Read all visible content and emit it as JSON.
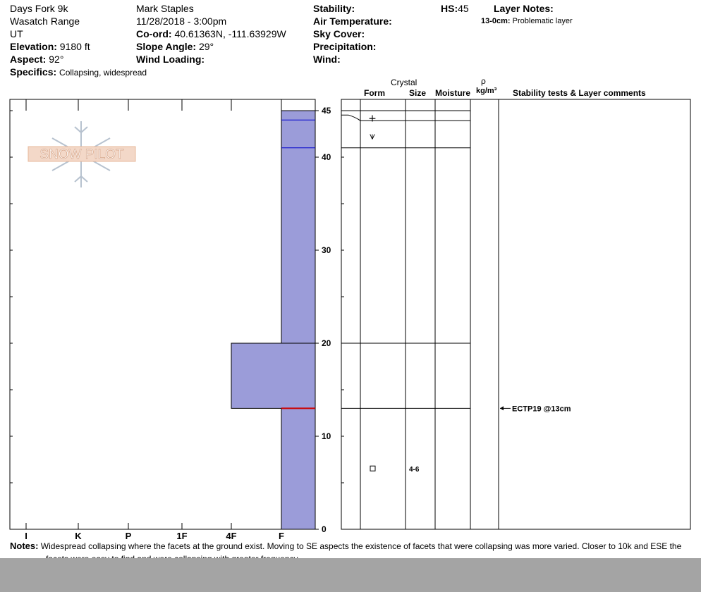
{
  "header": {
    "location": "Days Fork 9k",
    "range": "Wasatch Range",
    "state": "UT",
    "elevation_label": "Elevation:",
    "elevation_value": "9180 ft",
    "aspect_label": "Aspect:",
    "aspect_value": "92°",
    "specifics_label": "Specifics:",
    "specifics_value": "Collapsing, widespread",
    "observer": "Mark Staples",
    "datetime": "11/28/2018 - 3:00pm",
    "coord_label": "Co-ord:",
    "coord_value": "40.61363N, -111.63929W",
    "slope_label": "Slope Angle:",
    "slope_value": "29°",
    "wind_loading_label": "Wind Loading:",
    "stability_label": "Stability:",
    "air_temp_label": "Air Temperature:",
    "sky_cover_label": "Sky Cover:",
    "precip_label": "Precipitation:",
    "wind_label": "Wind:",
    "hs_label": "HS:",
    "hs_value": "45",
    "layer_notes_label": "Layer Notes:",
    "layer_note_range": "13-0cm:",
    "layer_note_text": "Problematic layer"
  },
  "watermark": {
    "text": "SNOW PILOT"
  },
  "table_headers": {
    "crystal": "Crystal",
    "form": "Form",
    "size": "Size",
    "moisture": "Moisture",
    "rho": "ρ",
    "density_unit": "kg/m³",
    "stability": "Stability tests & Layer comments"
  },
  "notes": {
    "label": "Notes:",
    "line1": "Widespread collapsing where the facets at the ground exist. Moving to SE aspects the existence of facets that were collapsing was more varied. Closer to 10k and ESE the",
    "line2": "facets were easy to find and were collapsing with greater frequency."
  },
  "chart_data": {
    "type": "bar",
    "orientation": "horizontal",
    "ylabel": "",
    "ylim": [
      0,
      45
    ],
    "yticks": [
      "0",
      "10",
      "20",
      "30",
      "40",
      "45"
    ],
    "hardness_scale": [
      "I",
      "K",
      "P",
      "1F",
      "4F",
      "F"
    ],
    "hardness_layers": [
      {
        "top": 45,
        "bottom": 20,
        "hardness": "F"
      },
      {
        "top": 20,
        "bottom": 13,
        "hardness": "4F"
      },
      {
        "top": 13,
        "bottom": 0,
        "hardness": "F"
      }
    ],
    "layer_boundaries": [
      45,
      44,
      41,
      20,
      13
    ],
    "crystals": [
      {
        "depth": 44.2,
        "symbol": "+",
        "size": ""
      },
      {
        "depth": 42.3,
        "symbol": "⩛",
        "size": ""
      },
      {
        "depth": 6.5,
        "symbol": "□",
        "size": "4-6"
      }
    ],
    "stability_tests": [
      {
        "depth": 13,
        "label": "ECTP19 @13cm"
      }
    ],
    "bar_fill": "#9b9cd9",
    "bar_border": "#0000cc",
    "test_line_color": "#cc0000"
  }
}
